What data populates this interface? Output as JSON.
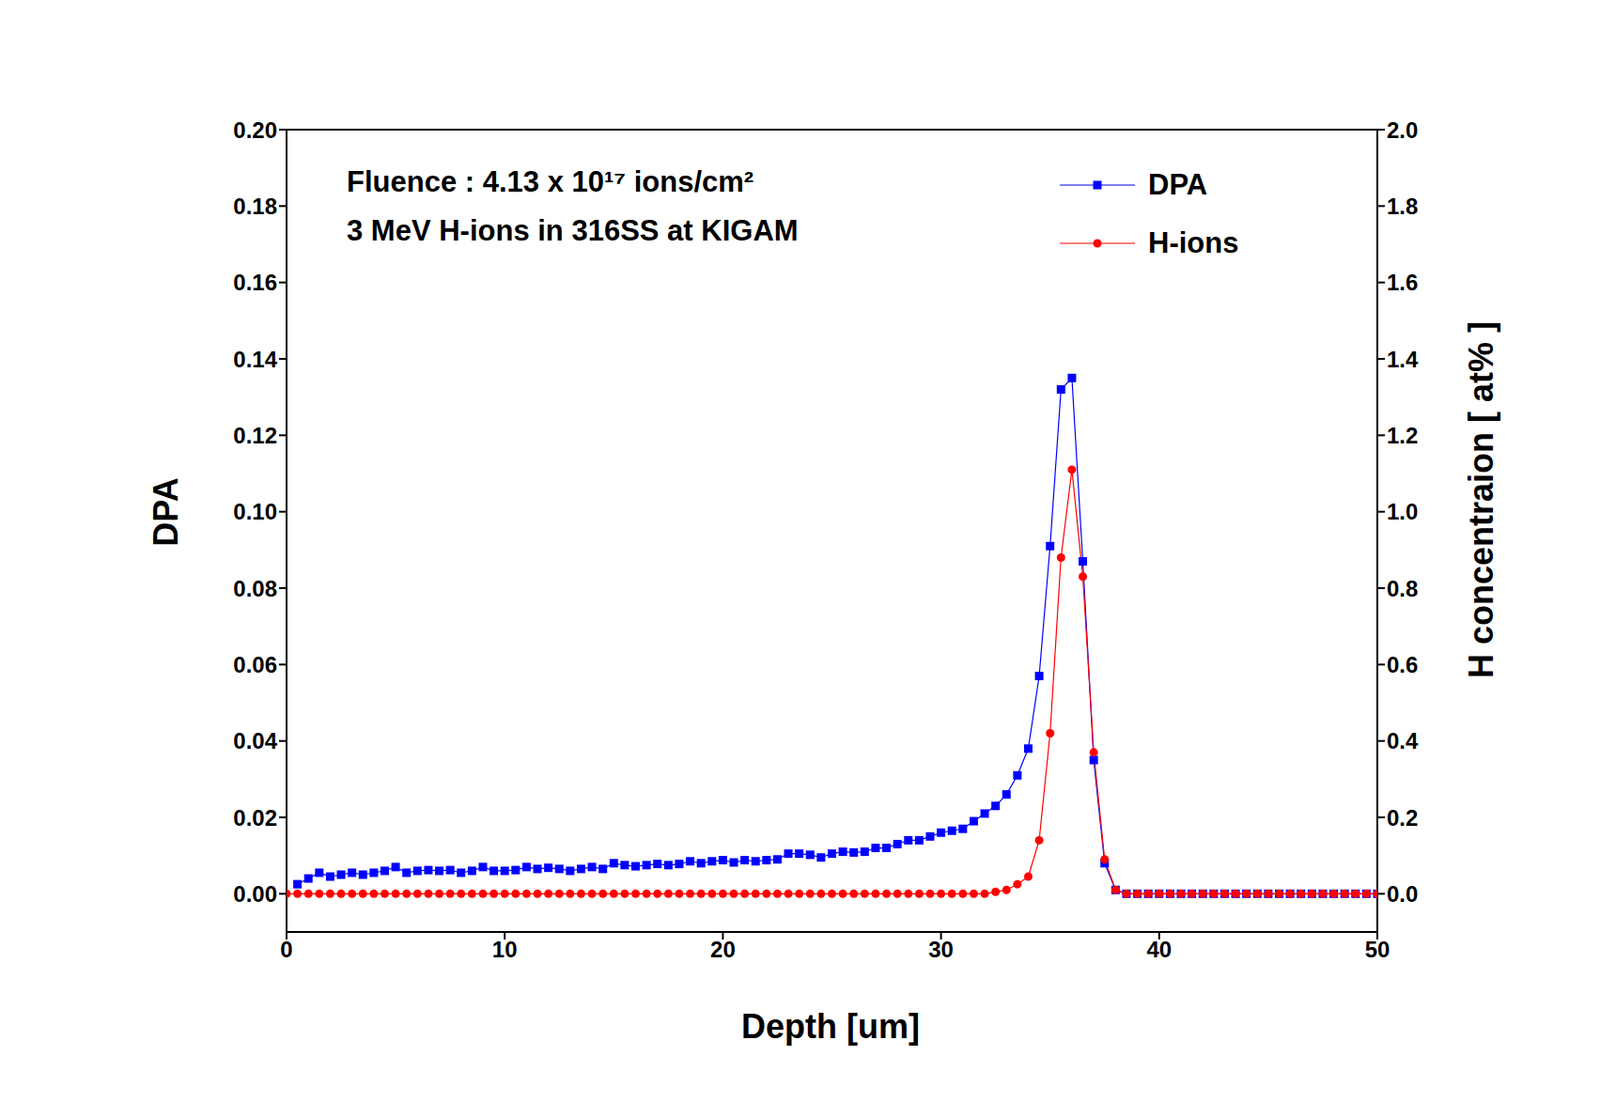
{
  "chart_data": {
    "type": "line",
    "annotations": [
      "Fluence : 4.13 x 10¹⁷ ions/cm²",
      "3 MeV H-ions in 316SS at KIGAM"
    ],
    "x_label": "Depth [um]",
    "y_label": "DPA",
    "y2_label": "H concentraion [ at% ]",
    "legend": "upper right",
    "grid": false,
    "x": [
      0,
      0.5,
      1,
      1.5,
      2,
      2.5,
      3,
      3.5,
      4,
      4.5,
      5,
      5.5,
      6,
      6.5,
      7,
      7.5,
      8,
      8.5,
      9,
      9.5,
      10,
      10.5,
      11,
      11.5,
      12,
      12.5,
      13,
      13.5,
      14,
      14.5,
      15,
      15.5,
      16,
      16.5,
      17,
      17.5,
      18,
      18.5,
      19,
      19.5,
      20,
      20.5,
      21,
      21.5,
      22,
      22.5,
      23,
      23.5,
      24,
      24.5,
      25,
      25.5,
      26,
      26.5,
      27,
      27.5,
      28,
      28.5,
      29,
      29.5,
      30,
      30.5,
      31,
      31.5,
      32,
      32.5,
      33,
      33.5,
      34,
      34.5,
      35,
      35.5,
      36,
      36.5,
      37,
      37.5,
      38,
      38.5,
      39,
      39.5,
      40,
      40.5,
      41,
      41.5,
      42,
      42.5,
      43,
      43.5,
      44,
      44.5,
      45,
      45.5,
      46,
      46.5,
      47,
      47.5,
      48,
      48.5,
      49,
      49.5,
      50
    ],
    "xlim": [
      0,
      50
    ],
    "xticks": [
      0,
      10,
      20,
      30,
      40,
      50
    ],
    "ylim": [
      -0.01,
      0.2
    ],
    "yticks": [
      {
        "value": 0,
        "label": "0.00"
      },
      {
        "value": 0.02,
        "label": "0.02"
      },
      {
        "value": 0.04,
        "label": "0.04"
      },
      {
        "value": 0.06,
        "label": "0.06"
      },
      {
        "value": 0.08,
        "label": "0.08"
      },
      {
        "value": 0.1,
        "label": "0.10"
      },
      {
        "value": 0.12,
        "label": "0.12"
      },
      {
        "value": 0.14,
        "label": "0.14"
      },
      {
        "value": 0.16,
        "label": "0.16"
      },
      {
        "value": 0.18,
        "label": "0.18"
      },
      {
        "value": 0.2,
        "label": "0.20"
      }
    ],
    "y2lim": [
      -0.1,
      2.0
    ],
    "y2ticks": [
      {
        "value": 0,
        "label": "0.0"
      },
      {
        "value": 0.2,
        "label": "0.2"
      },
      {
        "value": 0.4,
        "label": "0.4"
      },
      {
        "value": 0.6,
        "label": "0.6"
      },
      {
        "value": 0.8,
        "label": "0.8"
      },
      {
        "value": 1,
        "label": "1.0"
      },
      {
        "value": 1.2,
        "label": "1.2"
      },
      {
        "value": 1.4,
        "label": "1.4"
      },
      {
        "value": 1.6,
        "label": "1.6"
      },
      {
        "value": 1.8,
        "label": "1.8"
      },
      {
        "value": 2,
        "label": "2.0"
      }
    ],
    "series": [
      {
        "name": "DPA",
        "color": "#0000ff",
        "marker": "square",
        "values": [
          null,
          0.0025,
          0.004,
          0.0055,
          0.0045,
          0.005,
          0.0055,
          0.005,
          0.0055,
          0.006,
          0.007,
          0.0055,
          0.006,
          0.0062,
          0.006,
          0.0062,
          0.0055,
          0.006,
          0.007,
          0.006,
          0.006,
          0.0062,
          0.007,
          0.0065,
          0.0068,
          0.0065,
          0.006,
          0.0065,
          0.007,
          0.0065,
          0.008,
          0.0075,
          0.0072,
          0.0075,
          0.0078,
          0.0075,
          0.0078,
          0.0085,
          0.008,
          0.0085,
          0.0088,
          0.0082,
          0.0088,
          0.0085,
          0.0088,
          0.009,
          0.0105,
          0.0105,
          0.0102,
          0.0095,
          0.0105,
          0.011,
          0.0108,
          0.011,
          0.012,
          0.012,
          0.013,
          0.014,
          0.014,
          0.015,
          0.016,
          0.0165,
          0.017,
          0.019,
          0.021,
          0.023,
          0.026,
          0.031,
          0.038,
          0.057,
          0.091,
          0.132,
          0.135,
          0.087,
          0.035,
          0.008,
          0.001,
          0,
          0,
          0,
          0,
          0,
          0,
          0,
          0,
          0,
          0,
          0,
          0,
          0,
          0,
          0,
          0,
          0,
          0,
          0,
          0,
          0,
          0,
          0,
          0
        ]
      },
      {
        "name": "H-ions",
        "color": "#ff0000",
        "marker": "circle",
        "axis": "y2",
        "values": [
          0,
          0,
          0,
          0,
          0,
          0,
          0,
          0,
          0,
          0,
          0,
          0,
          0,
          0,
          0,
          0,
          0,
          0,
          0,
          0,
          0,
          0,
          0,
          0,
          0,
          0,
          0,
          0,
          0,
          0,
          0,
          0,
          0,
          0,
          0,
          0,
          0,
          0,
          0,
          0,
          0,
          0,
          0,
          0,
          0,
          0,
          0,
          0,
          0,
          0,
          0,
          0,
          0,
          0,
          0,
          0,
          0,
          0,
          0,
          0,
          0,
          0,
          0,
          0,
          0,
          0.005,
          0.01,
          0.025,
          0.045,
          0.14,
          0.42,
          0.88,
          1.11,
          0.83,
          0.37,
          0.09,
          0.01,
          0,
          0,
          0,
          0,
          0,
          0,
          0,
          0,
          0,
          0,
          0,
          0,
          0,
          0,
          0,
          0,
          0,
          0,
          0,
          0,
          0,
          0,
          0,
          0
        ]
      }
    ]
  }
}
